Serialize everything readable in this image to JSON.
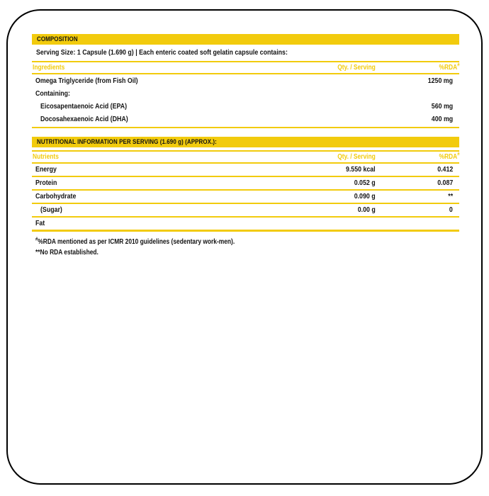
{
  "colors": {
    "accent_yellow": "#F2CB0D",
    "text_ink": "#141414",
    "border_black": "#000000"
  },
  "composition": {
    "title": "COMPOSITION",
    "serving_line": "Serving Size: 1 Capsule (1.690 g) | Each enteric coated soft gelatin capsule contains:",
    "columns": {
      "label": "Ingredients",
      "qty": "Qty. / Serving",
      "rda": "%RDA",
      "rda_sup": "#"
    },
    "rows": [
      {
        "label": "Omega Triglyceride (from Fish Oil)",
        "qty": "",
        "amount": "1250 mg"
      },
      {
        "label": "Containing:",
        "qty": "",
        "amount": ""
      },
      {
        "label": "Eicosapentaenoic Acid (EPA)",
        "qty": "",
        "amount": "560 mg"
      },
      {
        "label": "Docosahexaenoic Acid (DHA)",
        "qty": "",
        "amount": "400 mg"
      }
    ]
  },
  "nutrition": {
    "title": "NUTRITIONAL INFORMATION PER SERVING (1.690 g) (APPROX.):",
    "columns": {
      "label": "Nutrients",
      "qty": "Qty. / Serving",
      "rda": "%RDA",
      "rda_sup": "#"
    },
    "rows": [
      {
        "label": "Energy",
        "qty": "9.550 kcal",
        "rda": "0.412"
      },
      {
        "label": "Protein",
        "qty": "0.052 g",
        "rda": "0.087"
      },
      {
        "label": "Carbohydrate",
        "qty": "0.090 g",
        "rda": "**"
      },
      {
        "label": "(Sugar)",
        "qty": "0.00 g",
        "rda": "0"
      },
      {
        "label": "Fat",
        "qty": "",
        "rda": ""
      }
    ]
  },
  "footnotes": [
    {
      "sup": "#",
      "text": "%RDA mentioned as per ICMR 2010 guidelines (sedentary work-men)."
    },
    {
      "sup": "",
      "text": "**No RDA established."
    }
  ]
}
